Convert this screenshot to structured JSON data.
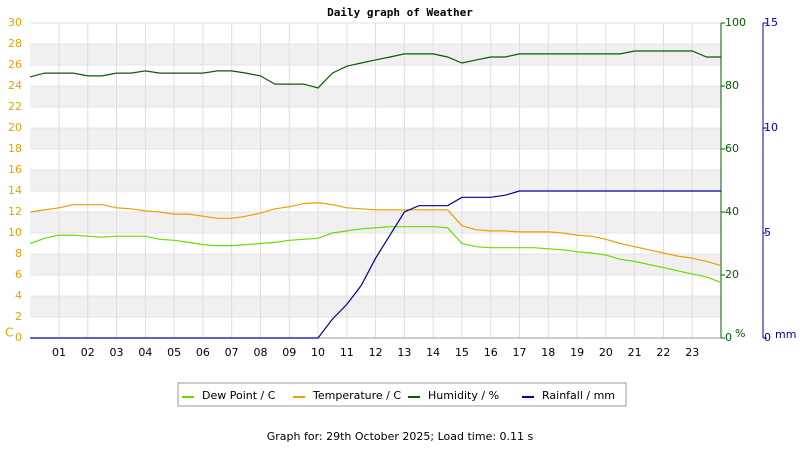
{
  "chart_data": {
    "type": "line",
    "title": "Daily graph of Weather",
    "footer": "Graph for: 29th October 2025; Load time: 0.11 s",
    "ylabel": "C",
    "y2label": "%",
    "y3label": "mm",
    "grid": true,
    "legend": "bottom",
    "x": [
      0,
      0.5,
      1,
      1.5,
      2,
      2.5,
      3,
      3.5,
      4,
      4.5,
      5,
      5.5,
      6,
      6.5,
      7,
      7.5,
      8,
      8.5,
      9,
      9.5,
      10,
      10.5,
      11,
      11.5,
      12,
      12.5,
      13,
      13.5,
      14,
      14.5,
      15,
      15.5,
      16,
      16.5,
      17,
      17.5,
      18,
      18.5,
      19,
      19.5,
      20,
      20.5,
      21,
      21.5,
      22,
      22.5,
      23,
      23.5,
      24
    ],
    "xlim": [
      0,
      24
    ],
    "xticks": [
      {
        "value": 1,
        "label": "01"
      },
      {
        "value": 2,
        "label": "02"
      },
      {
        "value": 3,
        "label": "03"
      },
      {
        "value": 4,
        "label": "04"
      },
      {
        "value": 5,
        "label": "05"
      },
      {
        "value": 6,
        "label": "06"
      },
      {
        "value": 7,
        "label": "07"
      },
      {
        "value": 8,
        "label": "08"
      },
      {
        "value": 9,
        "label": "09"
      },
      10,
      11,
      12,
      13,
      14,
      15,
      16,
      17,
      18,
      19,
      20,
      21,
      22,
      23
    ],
    "ylim": [
      0,
      30
    ],
    "yticks": [
      0,
      2,
      4,
      6,
      8,
      10,
      12,
      14,
      16,
      18,
      20,
      22,
      24,
      26,
      28,
      30
    ],
    "y2lim": [
      0,
      100
    ],
    "y2ticks": [
      0,
      20,
      40,
      60,
      80,
      100
    ],
    "y3lim": [
      0,
      15
    ],
    "y3ticks": [
      0,
      5,
      10,
      15
    ],
    "series": [
      {
        "name": "Dew Point / C",
        "color": "#66dd00",
        "axis": "y",
        "values": [
          9.0,
          9.5,
          9.8,
          9.8,
          9.7,
          9.6,
          9.7,
          9.7,
          9.7,
          9.4,
          9.3,
          9.1,
          8.9,
          8.8,
          8.8,
          8.9,
          9.0,
          9.1,
          9.3,
          9.4,
          9.5,
          10.0,
          10.2,
          10.4,
          10.5,
          10.6,
          10.6,
          10.6,
          10.6,
          10.5,
          9.0,
          8.7,
          8.6,
          8.6,
          8.6,
          8.6,
          8.5,
          8.4,
          8.2,
          8.1,
          7.9,
          7.5,
          7.3,
          7.0,
          6.7,
          6.4,
          6.1,
          5.8,
          5.3
        ]
      },
      {
        "name": "Temperature / C",
        "color": "#eaa000",
        "axis": "y",
        "values": [
          12.0,
          12.2,
          12.4,
          12.7,
          12.7,
          12.7,
          12.4,
          12.3,
          12.1,
          12.0,
          11.8,
          11.8,
          11.6,
          11.4,
          11.4,
          11.6,
          11.9,
          12.3,
          12.5,
          12.8,
          12.9,
          12.7,
          12.4,
          12.3,
          12.2,
          12.2,
          12.2,
          12.2,
          12.2,
          12.2,
          10.7,
          10.3,
          10.2,
          10.2,
          10.1,
          10.1,
          10.1,
          10.0,
          9.8,
          9.7,
          9.4,
          9.0,
          8.7,
          8.4,
          8.1,
          7.8,
          7.6,
          7.3,
          6.9
        ]
      },
      {
        "name": "Humidity / %",
        "color": "#006000",
        "axis": "y2",
        "values": [
          82.9,
          84.1,
          84.1,
          84.1,
          83.2,
          83.2,
          84.1,
          84.1,
          84.8,
          84.1,
          84.1,
          84.1,
          84.1,
          84.8,
          84.8,
          84.1,
          83.2,
          80.6,
          80.6,
          80.6,
          79.4,
          84.1,
          86.3,
          87.3,
          88.3,
          89.2,
          90.2,
          90.2,
          90.2,
          89.2,
          87.3,
          88.3,
          89.2,
          89.2,
          90.2,
          90.2,
          90.2,
          90.2,
          90.2,
          90.2,
          90.2,
          90.2,
          91.1,
          91.1,
          91.1,
          91.1,
          91.1,
          89.2,
          89.2
        ]
      },
      {
        "name": "Rainfall / mm",
        "color": "#0000a0",
        "axis": "y3",
        "values": [
          0,
          0,
          0,
          0,
          0,
          0,
          0,
          0,
          0,
          0,
          0,
          0,
          0,
          0,
          0,
          0,
          0,
          0,
          0,
          0,
          0,
          0.9,
          1.6,
          2.5,
          3.8,
          4.9,
          6.0,
          6.3,
          6.3,
          6.3,
          6.7,
          6.7,
          6.7,
          6.8,
          7.0,
          7.0,
          7.0,
          7.0,
          7.0,
          7.0,
          7.0,
          7.0,
          7.0,
          7.0,
          7.0,
          7.0,
          7.0,
          7.0,
          7.0
        ]
      }
    ]
  }
}
